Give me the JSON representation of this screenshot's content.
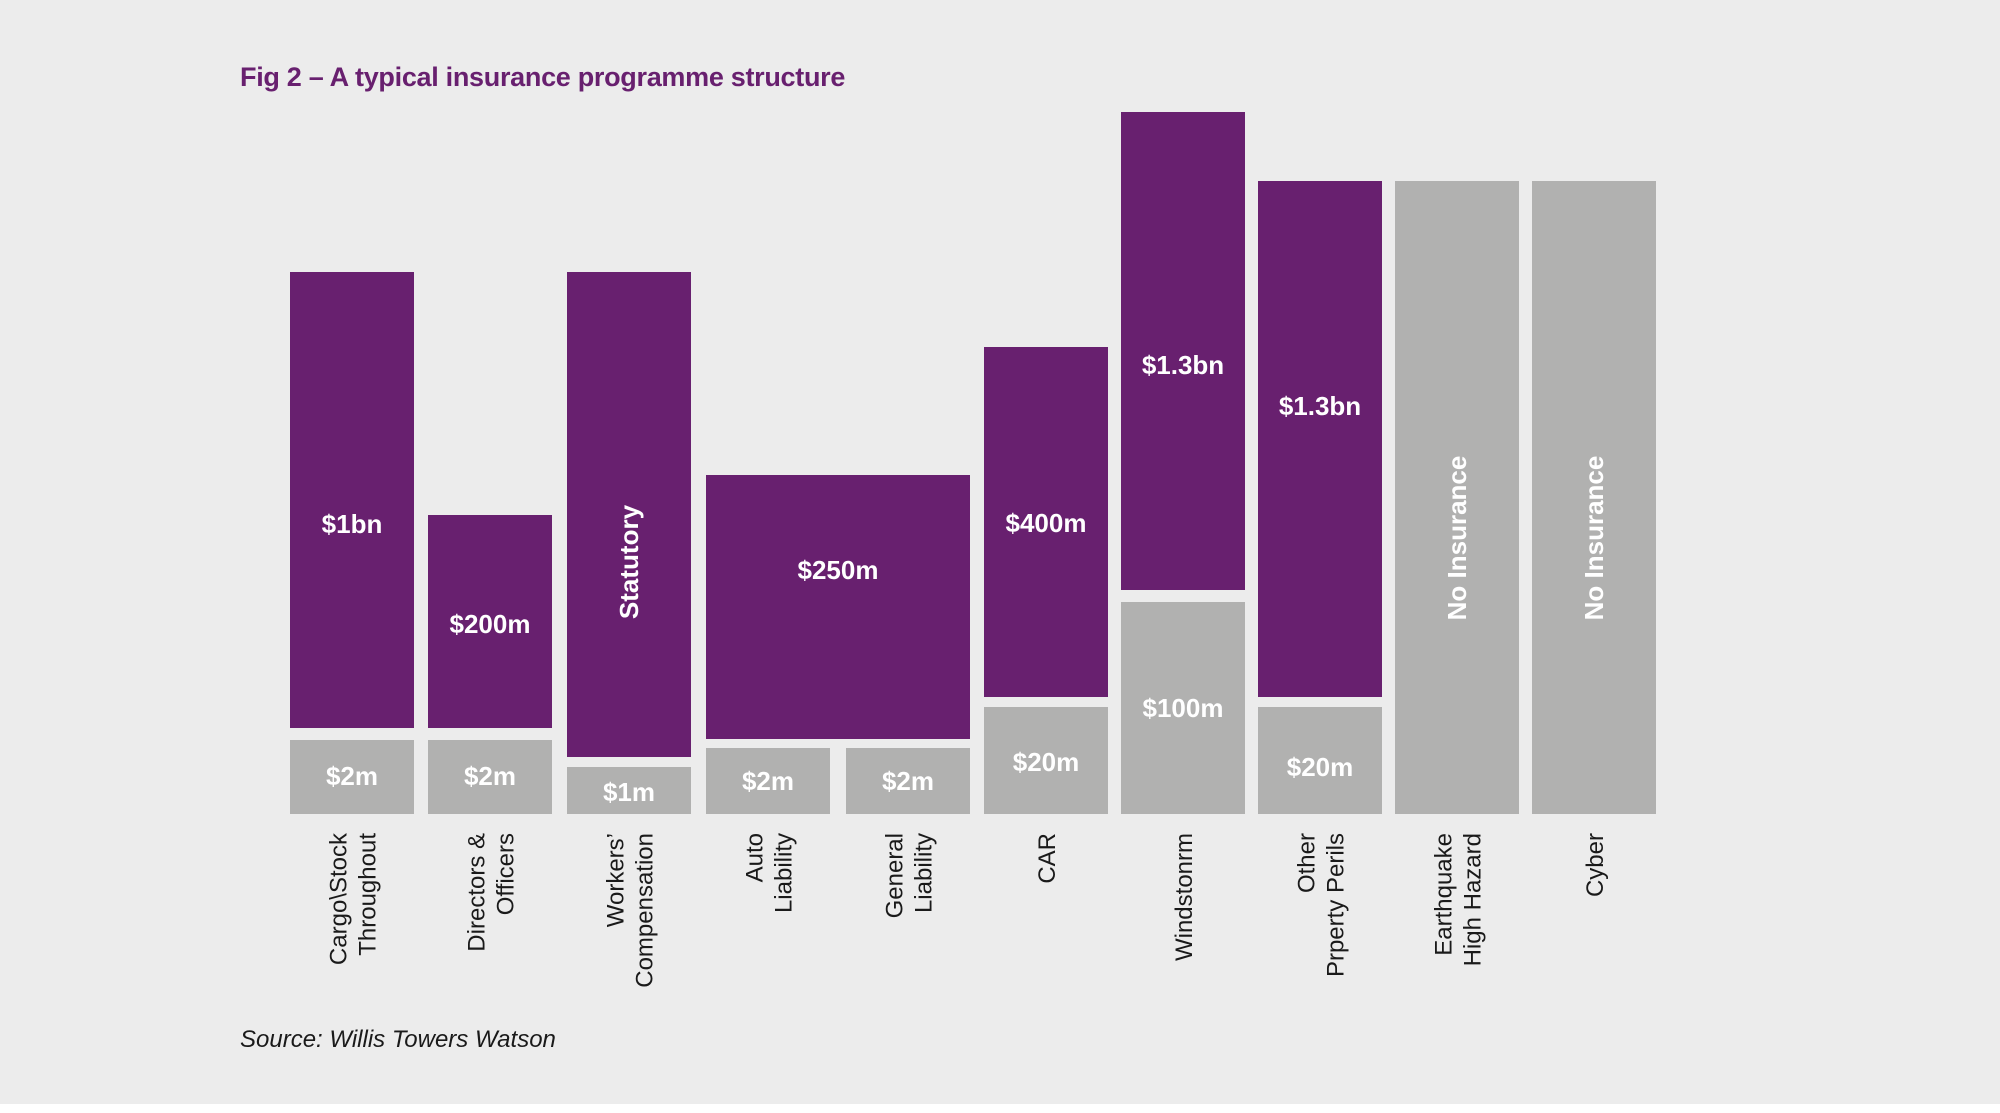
{
  "chart_data": {
    "type": "bar",
    "title": "Fig 2 – A typical insurance programme structure",
    "source": "Source: Willis Towers Watson",
    "colors": {
      "insured_layer": "#68206f",
      "retention_or_uninsured": "#b1b1b0",
      "background": "#ececec"
    },
    "categories": [
      {
        "label": [
          "Cargo\\Stock",
          "Throughout"
        ],
        "segments": [
          {
            "label": "$2m",
            "kind": "retention"
          },
          {
            "label": "$1bn",
            "kind": "insured"
          }
        ]
      },
      {
        "label": [
          "Directors &",
          "Officers"
        ],
        "segments": [
          {
            "label": "$2m",
            "kind": "retention"
          },
          {
            "label": "$200m",
            "kind": "insured"
          }
        ]
      },
      {
        "label": [
          "Workers’",
          "Compensation"
        ],
        "segments": [
          {
            "label": "$1m",
            "kind": "retention"
          },
          {
            "label": "Statutory",
            "kind": "insured"
          }
        ]
      },
      {
        "label": [
          "Auto",
          "Liability"
        ],
        "segments": [
          {
            "label": "$2m",
            "kind": "retention"
          },
          {
            "label": "$250m",
            "kind": "insured",
            "shared_with_next": true
          }
        ]
      },
      {
        "label": [
          "General",
          "Liability"
        ],
        "segments": [
          {
            "label": "$2m",
            "kind": "retention"
          }
        ]
      },
      {
        "label": [
          "CAR"
        ],
        "segments": [
          {
            "label": "$20m",
            "kind": "retention"
          },
          {
            "label": "$400m",
            "kind": "insured"
          }
        ]
      },
      {
        "label": [
          "Windstonrm"
        ],
        "segments": [
          {
            "label": "$100m",
            "kind": "retention"
          },
          {
            "label": "$1.3bn",
            "kind": "insured"
          }
        ]
      },
      {
        "label": [
          "Other",
          "Prperty Perils"
        ],
        "segments": [
          {
            "label": "$20m",
            "kind": "retention"
          },
          {
            "label": "$1.3bn",
            "kind": "insured"
          }
        ]
      },
      {
        "label": [
          "Earthquake",
          "High Hazard"
        ],
        "segments": [
          {
            "label": "No Insurance",
            "kind": "uninsured"
          }
        ]
      },
      {
        "label": [
          "Cyber"
        ],
        "segments": [
          {
            "label": "No Insurance",
            "kind": "uninsured"
          }
        ]
      }
    ]
  }
}
